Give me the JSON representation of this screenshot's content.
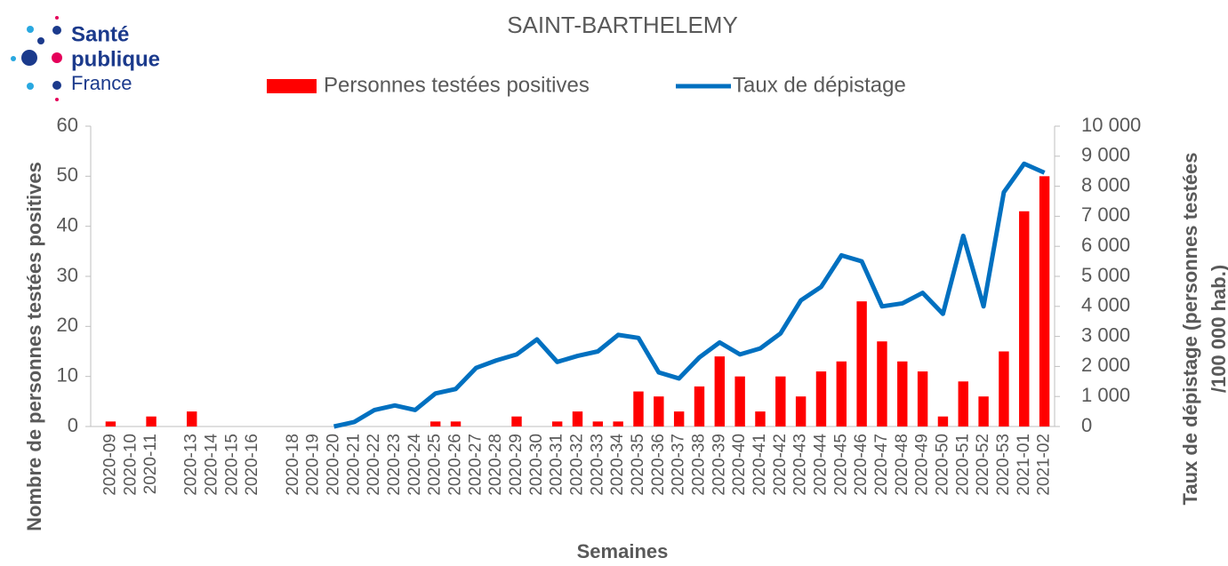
{
  "logo": {
    "line1": "Santé",
    "line2": "publique",
    "line3": "France"
  },
  "chart_data": {
    "type": "bar-line",
    "title": "SAINT-BARTHELEMY",
    "xlabel": "Semaines",
    "ylabel": "Nombre de personnes testées positives",
    "y2label": [
      "Taux de dépistage (personnes testées",
      "/100 000 hab.)"
    ],
    "categories": [
      "2020-09",
      "2020-10",
      "2020-11",
      null,
      "2020-13",
      "2020-14",
      "2020-15",
      "2020-16",
      null,
      "2020-18",
      "2020-19",
      "2020-20",
      "2020-21",
      "2020-22",
      "2020-23",
      "2020-24",
      "2020-25",
      "2020-26",
      "2020-27",
      "2020-28",
      "2020-29",
      "2020-30",
      "2020-31",
      "2020-32",
      "2020-33",
      "2020-34",
      "2020-35",
      "2020-36",
      "2020-37",
      "2020-38",
      "2020-39",
      "2020-40",
      "2020-41",
      "2020-42",
      "2020-43",
      "2020-44",
      "2020-45",
      "2020-46",
      "2020-47",
      "2020-48",
      "2020-49",
      "2020-50",
      "2020-51",
      "2020-52",
      "2020-53",
      "2021-01",
      "2021-02"
    ],
    "series": [
      {
        "name": "Personnes testées positives",
        "color": "#ff0000",
        "type": "bar",
        "values": [
          1,
          0,
          2,
          0,
          3,
          0,
          0,
          0,
          0,
          0,
          0,
          0,
          0,
          0,
          0,
          0,
          1,
          1,
          0,
          0,
          2,
          0,
          1,
          3,
          1,
          1,
          7,
          6,
          3,
          8,
          14,
          10,
          3,
          10,
          6,
          11,
          13,
          25,
          17,
          13,
          11,
          2,
          9,
          6,
          15,
          43,
          50
        ]
      },
      {
        "name": "Taux de dépistage",
        "color": "#0070c0",
        "type": "line",
        "axis": "y2",
        "values": [
          null,
          null,
          null,
          null,
          null,
          null,
          null,
          null,
          null,
          null,
          null,
          0,
          150,
          550,
          700,
          550,
          1100,
          1250,
          1950,
          2200,
          2400,
          2900,
          2150,
          2350,
          2500,
          3050,
          2950,
          1800,
          1600,
          2300,
          2800,
          2400,
          2600,
          3100,
          4200,
          4650,
          5700,
          5500,
          4000,
          4100,
          4450,
          3750,
          6350,
          4000,
          7800,
          8750,
          8450
        ]
      }
    ],
    "ylim": [
      0,
      60
    ],
    "yticks": [
      0,
      10,
      20,
      30,
      40,
      50,
      60
    ],
    "y2lim": [
      0,
      10000
    ],
    "y2ticks": [
      0,
      {
        "value": 1000,
        "label": "1 000"
      },
      {
        "value": 2000,
        "label": "2 000"
      },
      {
        "value": 3000,
        "label": "3 000"
      },
      {
        "value": 4000,
        "label": "4 000"
      },
      {
        "value": 5000,
        "label": "5 000"
      },
      {
        "value": 6000,
        "label": "6 000"
      },
      {
        "value": 7000,
        "label": "7 000"
      },
      {
        "value": 8000,
        "label": "8 000"
      },
      {
        "value": 9000,
        "label": "9 000"
      },
      {
        "value": 10000,
        "label": "10 000"
      }
    ],
    "legend": "top"
  }
}
